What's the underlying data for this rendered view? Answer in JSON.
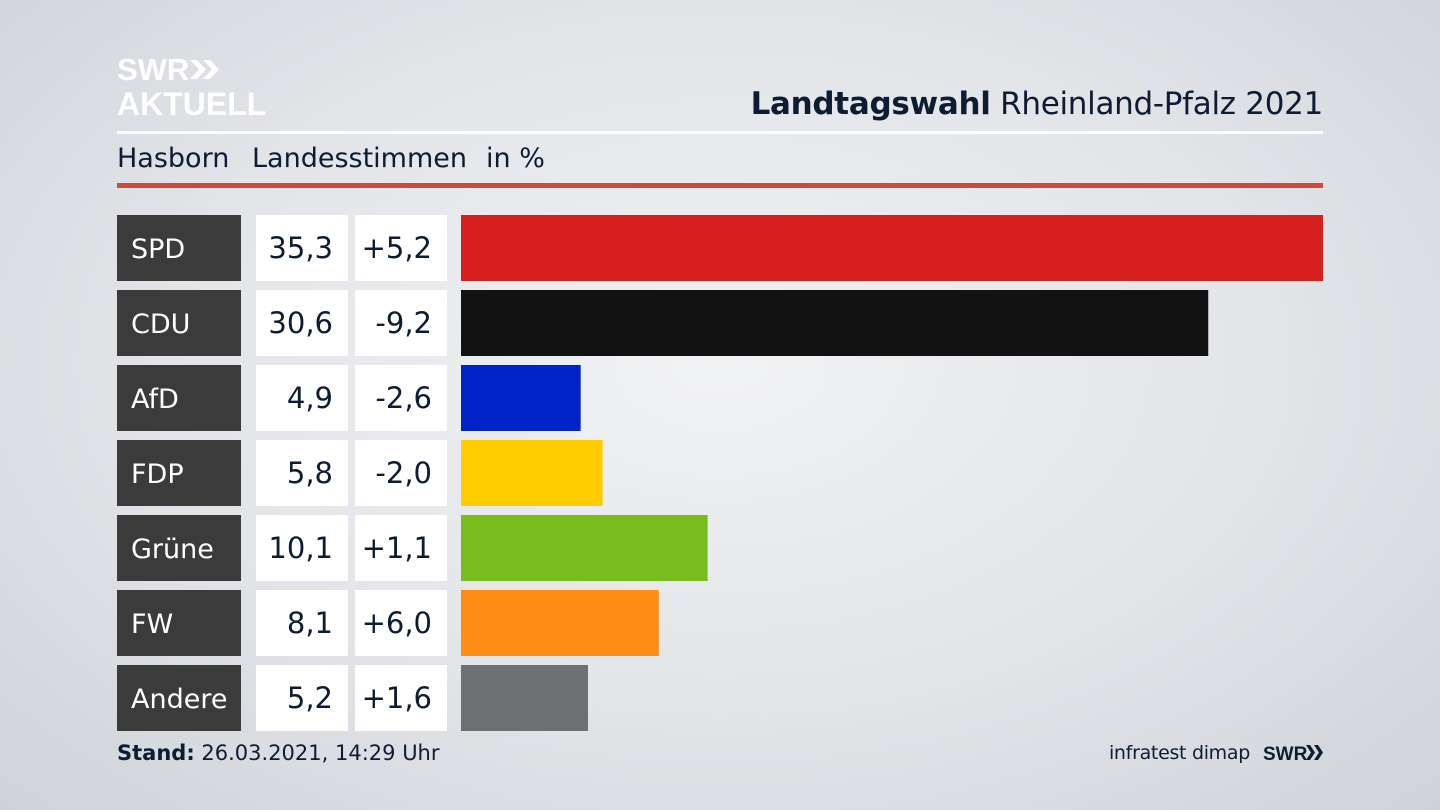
{
  "header": {
    "logo_line1": "SWR",
    "logo_line2": "AKTUELL",
    "title_bold": "Landtagswahl",
    "title_rest": "Rheinland-Pfalz 2021",
    "location": "Hasborn",
    "vote_type": "Landesstimmen",
    "unit": "in %"
  },
  "chart_data": {
    "type": "bar",
    "orientation": "horizontal",
    "categories": [
      "SPD",
      "CDU",
      "AfD",
      "FDP",
      "Grüne",
      "FW",
      "Andere"
    ],
    "values": [
      35.3,
      30.6,
      4.9,
      5.8,
      10.1,
      8.1,
      5.2
    ],
    "value_labels": [
      "35,3",
      "30,6",
      "4,9",
      "5,8",
      "10,1",
      "8,1",
      "5,2"
    ],
    "change_labels": [
      "+5,2",
      "-9,2",
      "-2,6",
      "-2,0",
      "+1,1",
      "+6,0",
      "+1,6"
    ],
    "changes": [
      5.2,
      -9.2,
      -2.6,
      -2.0,
      1.1,
      6.0,
      1.6
    ],
    "colors": [
      "#d81f20",
      "#121212",
      "#0022c9",
      "#ffcc00",
      "#78bc1e",
      "#ff8c16",
      "#6e6f72"
    ],
    "xlim": [
      0,
      35.3
    ]
  },
  "footer": {
    "stand_label": "Stand:",
    "stand_value": "26.03.2021, 14:29 Uhr",
    "source": "infratest dimap",
    "brand": "SWR"
  }
}
